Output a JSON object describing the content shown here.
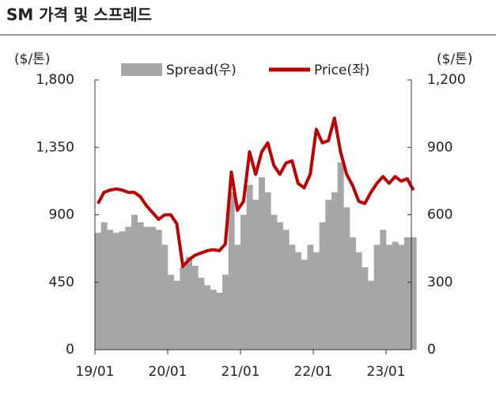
{
  "chart_data": {
    "type": "bar-line",
    "title": "SM 가격 및 스프레드",
    "y_unit": "($/톤)",
    "y2_unit": "($/톤)",
    "x": [
      "19/01",
      "19/02",
      "19/03",
      "19/04",
      "19/05",
      "19/06",
      "19/07",
      "19/08",
      "19/09",
      "19/10",
      "19/11",
      "19/12",
      "20/01",
      "20/02",
      "20/03",
      "20/04",
      "20/05",
      "20/06",
      "20/07",
      "20/08",
      "20/09",
      "20/10",
      "20/11",
      "20/12",
      "21/01",
      "21/02",
      "21/03",
      "21/04",
      "21/05",
      "21/06",
      "21/07",
      "21/08",
      "21/09",
      "21/10",
      "21/11",
      "21/12",
      "22/01",
      "22/02",
      "22/03",
      "22/04",
      "22/05",
      "22/06",
      "22/07",
      "22/08",
      "22/09",
      "22/10",
      "22/11",
      "22/12",
      "23/01",
      "23/02",
      "23/03",
      "23/04",
      "23/05"
    ],
    "xticks": [
      "19/01",
      "20/01",
      "21/01",
      "22/01",
      "23/01"
    ],
    "series": [
      {
        "name": "Spread(우)",
        "color": "#a6a6a6",
        "axis": "y",
        "values": [
          780,
          850,
          800,
          780,
          790,
          820,
          900,
          850,
          820,
          820,
          800,
          700,
          500,
          460,
          550,
          620,
          560,
          480,
          430,
          400,
          380,
          500,
          1050,
          700,
          900,
          1100,
          1000,
          1150,
          1050,
          900,
          850,
          800,
          700,
          650,
          600,
          700,
          650,
          850,
          1000,
          1050,
          1250,
          950,
          750,
          650,
          550,
          460,
          700,
          800,
          700,
          720,
          700,
          750,
          750
        ]
      },
      {
        "name": "Price(좌)",
        "color": "#c00000",
        "axis": "y2",
        "values": [
          650,
          700,
          710,
          715,
          710,
          700,
          700,
          680,
          640,
          610,
          580,
          600,
          600,
          560,
          370,
          400,
          420,
          430,
          440,
          445,
          440,
          470,
          790,
          620,
          660,
          880,
          780,
          880,
          920,
          820,
          780,
          830,
          840,
          740,
          720,
          780,
          980,
          920,
          930,
          1030,
          880,
          780,
          730,
          660,
          650,
          700,
          740,
          770,
          740,
          770,
          750,
          760,
          710
        ]
      }
    ],
    "ylim": [
      0,
      1800
    ],
    "yticks": [
      0,
      450,
      900,
      {
        "value": 1350,
        "label": "1,350"
      },
      {
        "value": 1800,
        "label": "1,800"
      }
    ],
    "y2lim": [
      0,
      1200
    ],
    "y2ticks": [
      0,
      300,
      600,
      900,
      {
        "value": 1200,
        "label": "1,200"
      }
    ]
  }
}
